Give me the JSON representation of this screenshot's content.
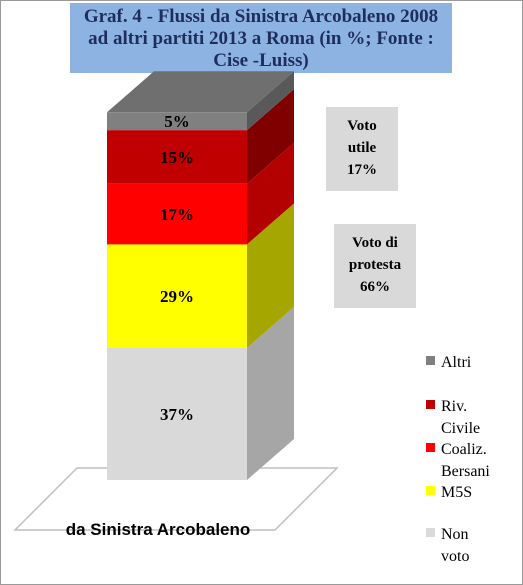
{
  "title": {
    "line1": "Graf. 4 - Flussi da Sinistra Arcobaleno 2008",
    "line2": "ad altri partiti 2013 a Roma (in %; Fonte :",
    "line3": "Cise -Luiss)"
  },
  "chart_data": {
    "type": "bar",
    "subtype": "stacked-3d-percent",
    "categories": [
      "da Sinistra Arcobaleno"
    ],
    "series": [
      {
        "name": "Non voto",
        "values": [
          37
        ],
        "label": "37%",
        "color": "#d9d9d9",
        "side_color": "#a6a6a6"
      },
      {
        "name": "M5S",
        "values": [
          29
        ],
        "label": "29%",
        "color": "#ffff00",
        "side_color": "#a6a600"
      },
      {
        "name": "Coaliz. Bersani",
        "values": [
          17
        ],
        "label": "17%",
        "color": "#ff0000",
        "side_color": "#b30000"
      },
      {
        "name": "Riv. Civile",
        "values": [
          15
        ],
        "label": "15%",
        "color": "#c00000",
        "side_color": "#800000"
      },
      {
        "name": "Altri",
        "values": [
          5
        ],
        "label": "5%",
        "color": "#808080",
        "side_color": "#595959"
      }
    ],
    "ylim": [
      0,
      100
    ]
  },
  "annotations": {
    "voto_utile": {
      "line1": "Voto",
      "line2": "utile",
      "line3": "17%"
    },
    "voto_protesta": {
      "line1": "Voto di",
      "line2": "protesta",
      "line3": "66%"
    }
  },
  "legend": {
    "items": [
      {
        "label": "Altri",
        "color": "#808080"
      },
      {
        "label": "Riv. Civile",
        "color": "#c00000"
      },
      {
        "label": "Coaliz. Bersani",
        "color": "#ff0000"
      },
      {
        "label": "M5S",
        "color": "#ffff00"
      },
      {
        "label": "Non voto",
        "color": "#d9d9d9"
      }
    ]
  }
}
